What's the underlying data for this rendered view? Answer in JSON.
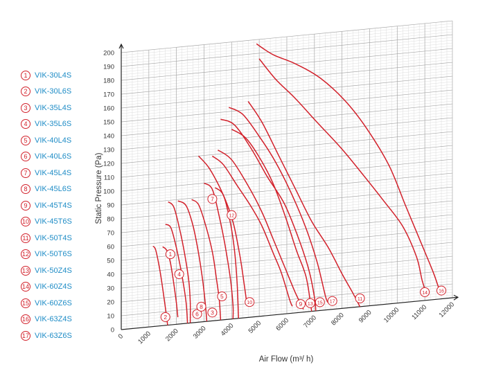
{
  "chart_data": {
    "type": "line",
    "xlabel": "Air Flow (m³/ h)",
    "ylabel": "Static Pressure (Pa)",
    "xlim": [
      0,
      12000
    ],
    "ylim": [
      0,
      200
    ],
    "x_ticks": [
      "0",
      "1000",
      "2000",
      "3000",
      "4000",
      "5000",
      "6000",
      "7000",
      "8000",
      "9000",
      "10000",
      "11000",
      "12000"
    ],
    "y_ticks": [
      "0",
      "10",
      "20",
      "30",
      "40",
      "50",
      "60",
      "70",
      "80",
      "90",
      "100",
      "110",
      "120",
      "130",
      "140",
      "150",
      "160",
      "170",
      "180",
      "190",
      "200"
    ],
    "grid": true,
    "line_color": "#d2202a",
    "legend_color": "#1e8cc6",
    "series": [
      {
        "id": "1",
        "name": "VIK-30L4S",
        "points": [
          [
            1500,
            57
          ],
          [
            1650,
            54
          ],
          [
            1780,
            45
          ],
          [
            1900,
            30
          ],
          [
            2000,
            15
          ],
          [
            2050,
            5
          ]
        ]
      },
      {
        "id": "2",
        "name": "VIK-30L6S",
        "points": [
          [
            1150,
            58
          ],
          [
            1250,
            55
          ],
          [
            1400,
            40
          ],
          [
            1550,
            20
          ],
          [
            1680,
            0
          ]
        ]
      },
      {
        "id": "3",
        "name": "VIK-35L4S",
        "points": [
          [
            2550,
            89
          ],
          [
            2800,
            85
          ],
          [
            3050,
            70
          ],
          [
            3300,
            50
          ],
          [
            3450,
            30
          ],
          [
            3550,
            15
          ],
          [
            3600,
            0
          ]
        ]
      },
      {
        "id": "4",
        "name": "VIK-35L6S",
        "points": [
          [
            1600,
            73
          ],
          [
            1800,
            70
          ],
          [
            2000,
            55
          ],
          [
            2200,
            35
          ],
          [
            2350,
            15
          ],
          [
            2400,
            0
          ]
        ]
      },
      {
        "id": "5",
        "name": "VIK-40L4S",
        "points": [
          [
            3000,
            100
          ],
          [
            3300,
            95
          ],
          [
            3550,
            75
          ],
          [
            3750,
            55
          ],
          [
            3950,
            30
          ],
          [
            4050,
            10
          ],
          [
            4050,
            0
          ]
        ]
      },
      {
        "id": "6",
        "name": "VIK-40L6S",
        "points": [
          [
            1700,
            89
          ],
          [
            1900,
            85
          ],
          [
            2100,
            70
          ],
          [
            2300,
            50
          ],
          [
            2450,
            30
          ],
          [
            2500,
            15
          ],
          [
            2500,
            0
          ]
        ]
      },
      {
        "id": "7",
        "name": "VIK-45L4S",
        "points": [
          [
            3300,
            119
          ],
          [
            3700,
            112
          ],
          [
            4200,
            96
          ],
          [
            4700,
            80
          ],
          [
            5100,
            65
          ],
          [
            5500,
            45
          ],
          [
            5800,
            30
          ],
          [
            6100,
            10
          ],
          [
            6200,
            5
          ]
        ]
      },
      {
        "id": "8",
        "name": "VIK-45L6S",
        "points": [
          [
            2050,
            89
          ],
          [
            2350,
            85
          ],
          [
            2600,
            70
          ],
          [
            2800,
            50
          ],
          [
            2950,
            30
          ],
          [
            3050,
            12
          ],
          [
            3100,
            0
          ]
        ]
      },
      {
        "id": "9",
        "name": "VIK-45T4S",
        "points": [
          [
            3500,
            123
          ],
          [
            4000,
            115
          ],
          [
            4600,
            95
          ],
          [
            5100,
            75
          ],
          [
            5500,
            55
          ],
          [
            5900,
            35
          ],
          [
            6300,
            15
          ],
          [
            6600,
            2
          ]
        ]
      },
      {
        "id": "10",
        "name": "VIK-45T6S",
        "points": [
          [
            2800,
            120
          ],
          [
            3200,
            110
          ],
          [
            3700,
            90
          ],
          [
            4050,
            70
          ],
          [
            4300,
            45
          ],
          [
            4450,
            25
          ],
          [
            4550,
            10
          ]
        ]
      },
      {
        "id": "11",
        "name": "VIK-50T4S",
        "points": [
          [
            4600,
            156
          ],
          [
            5100,
            140
          ],
          [
            5700,
            115
          ],
          [
            6300,
            90
          ],
          [
            6900,
            65
          ],
          [
            7500,
            45
          ],
          [
            8000,
            25
          ],
          [
            8400,
            10
          ],
          [
            8650,
            0
          ]
        ]
      },
      {
        "id": "12",
        "name": "VIK-50T6S",
        "points": [
          [
            3400,
            96
          ],
          [
            3700,
            90
          ],
          [
            3950,
            70
          ],
          [
            4100,
            50
          ],
          [
            4200,
            25
          ],
          [
            4250,
            0
          ]
        ]
      },
      {
        "id": "13",
        "name": "VIK-50Z4S",
        "points": [
          [
            4000,
            137
          ],
          [
            4500,
            130
          ],
          [
            5000,
            115
          ],
          [
            5500,
            95
          ],
          [
            5950,
            70
          ],
          [
            6350,
            45
          ],
          [
            6700,
            25
          ],
          [
            6900,
            0
          ]
        ]
      },
      {
        "id": "14",
        "name": "VIK-60Z4S",
        "points": [
          [
            5000,
            186
          ],
          [
            5600,
            170
          ],
          [
            6300,
            155
          ],
          [
            7100,
            136
          ],
          [
            8000,
            115
          ],
          [
            8800,
            94
          ],
          [
            9500,
            75
          ],
          [
            10200,
            55
          ],
          [
            10700,
            32
          ],
          [
            10900,
            15
          ],
          [
            11050,
            5
          ]
        ]
      },
      {
        "id": "15",
        "name": "VIK-60Z6S",
        "points": [
          [
            3600,
            145
          ],
          [
            4100,
            140
          ],
          [
            4700,
            122
          ],
          [
            5300,
            100
          ],
          [
            5900,
            80
          ],
          [
            6400,
            55
          ],
          [
            6800,
            30
          ],
          [
            7000,
            10
          ],
          [
            7050,
            0
          ]
        ]
      },
      {
        "id": "16",
        "name": "VIK-63Z4S",
        "points": [
          [
            4900,
            197
          ],
          [
            5500,
            188
          ],
          [
            6300,
            180
          ],
          [
            7200,
            168
          ],
          [
            8100,
            150
          ],
          [
            8900,
            128
          ],
          [
            9700,
            100
          ],
          [
            10300,
            70
          ],
          [
            10800,
            45
          ],
          [
            11300,
            20
          ],
          [
            11550,
            5
          ]
        ]
      },
      {
        "id": "17",
        "name": "VIK-63Z6S",
        "points": [
          [
            3900,
            153
          ],
          [
            4400,
            147
          ],
          [
            5000,
            130
          ],
          [
            5600,
            110
          ],
          [
            6200,
            85
          ],
          [
            6700,
            60
          ],
          [
            7100,
            35
          ],
          [
            7400,
            10
          ],
          [
            7500,
            5
          ]
        ]
      }
    ],
    "markers": [
      {
        "id": "1",
        "x": 1780,
        "y": 51
      },
      {
        "id": "7",
        "x": 3300,
        "y": 88
      },
      {
        "id": "12",
        "x": 4000,
        "y": 75
      },
      {
        "id": "4",
        "x": 2100,
        "y": 36
      },
      {
        "id": "2",
        "x": 1600,
        "y": 6
      },
      {
        "id": "6",
        "x": 2750,
        "y": 6
      },
      {
        "id": "8",
        "x": 2900,
        "y": 11
      },
      {
        "id": "3",
        "x": 3300,
        "y": 6
      },
      {
        "id": "5",
        "x": 3650,
        "y": 17
      },
      {
        "id": "10",
        "x": 4650,
        "y": 11
      },
      {
        "id": "9",
        "x": 6500,
        "y": 6
      },
      {
        "id": "13",
        "x": 6850,
        "y": 6
      },
      {
        "id": "15",
        "x": 7200,
        "y": 6
      },
      {
        "id": "17",
        "x": 7650,
        "y": 6
      },
      {
        "id": "11",
        "x": 8650,
        "y": 6
      },
      {
        "id": "14",
        "x": 11000,
        "y": 6
      },
      {
        "id": "16",
        "x": 11600,
        "y": 6
      }
    ]
  }
}
